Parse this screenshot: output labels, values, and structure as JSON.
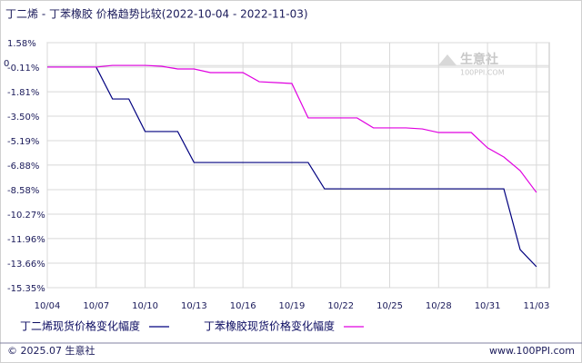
{
  "chart_data": {
    "type": "line",
    "title": "丁二烯 - 丁苯橡胶 价格趋势比较(2022-10-04 - 2022-11-03)",
    "categories": [
      "10/04",
      null,
      null,
      "10/07",
      null,
      null,
      "10/10",
      null,
      null,
      "10/13",
      null,
      null,
      "10/16",
      null,
      null,
      "10/19",
      null,
      null,
      "10/22",
      null,
      null,
      "10/25",
      null,
      null,
      "10/28",
      null,
      null,
      "10/31",
      null,
      null,
      "11/03"
    ],
    "series": [
      {
        "name": "丁二烯现货价格变化幅度",
        "color": "#00007f",
        "values": [
          -0.11,
          -0.11,
          -0.11,
          -0.11,
          -2.31,
          -2.31,
          -4.56,
          -4.56,
          -4.56,
          -6.7,
          -6.7,
          -6.7,
          -6.7,
          -6.7,
          -6.7,
          -6.7,
          -6.7,
          -8.52,
          -8.52,
          -8.52,
          -8.52,
          -8.52,
          -8.52,
          -8.52,
          -8.52,
          -8.52,
          -8.52,
          -8.52,
          -8.52,
          -12.72,
          -13.9
        ]
      },
      {
        "name": "丁苯橡胶现货价格变化幅度",
        "color": "#e000e0",
        "values": [
          -0.11,
          -0.11,
          -0.11,
          -0.11,
          0.01,
          0.01,
          0.01,
          -0.05,
          -0.24,
          -0.24,
          -0.49,
          -0.49,
          -0.49,
          -1.12,
          -1.18,
          -1.24,
          -3.62,
          -3.62,
          -3.62,
          -3.62,
          -4.31,
          -4.31,
          -4.31,
          -4.38,
          -4.63,
          -4.63,
          -4.63,
          -5.69,
          -6.32,
          -7.26,
          -8.77
        ]
      }
    ],
    "ylim": [
      -15.35,
      1.58
    ],
    "yticks": [
      {
        "value": 1.58,
        "label": "1.58%"
      },
      {
        "value": 0,
        "label": "0"
      },
      {
        "value": -0.11,
        "label": "-0.11%"
      },
      {
        "value": -1.81,
        "label": "-1.81%"
      },
      {
        "value": -3.5,
        "label": "-3.50%"
      },
      {
        "value": -5.19,
        "label": "-5.19%"
      },
      {
        "value": -6.88,
        "label": "-6.88%"
      },
      {
        "value": -8.58,
        "label": "-8.58%"
      },
      {
        "value": -10.27,
        "label": "-10.27%"
      },
      {
        "value": -11.96,
        "label": "-11.96%"
      },
      {
        "value": -13.66,
        "label": "-13.66%"
      },
      {
        "value": -15.35,
        "label": "-15.35%"
      }
    ],
    "grid": true,
    "watermark": "生意社",
    "watermark_sub": "100PPI.COM",
    "footer_left": "© 2025.07 生意社",
    "footer_right": "www.100PPI.com"
  }
}
